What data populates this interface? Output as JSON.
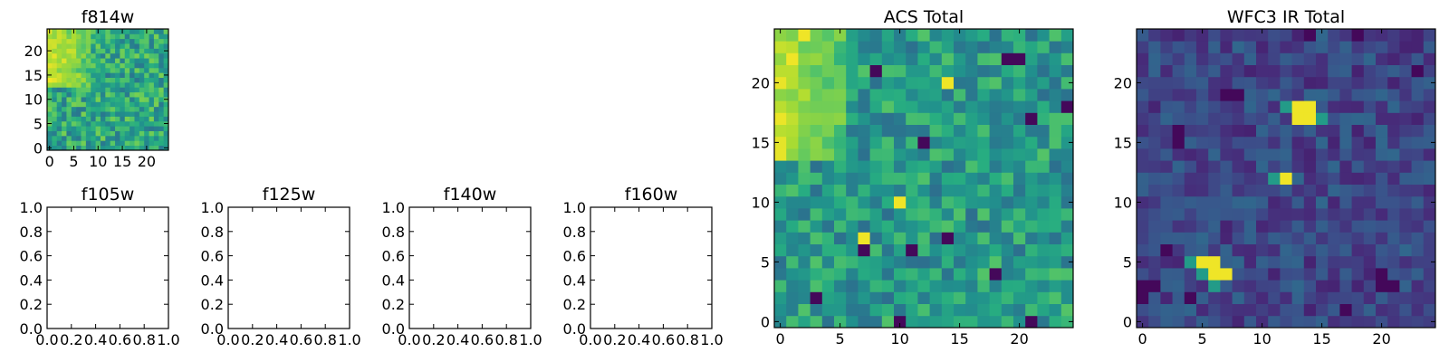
{
  "figure": {
    "background": "#ffffff",
    "colormap": "viridis"
  },
  "chart_data": [
    {
      "id": "f814w",
      "type": "heatmap",
      "title": "f814w",
      "grid": [
        25,
        25
      ],
      "xlim": [
        -0.5,
        24.5
      ],
      "ylim": [
        -0.5,
        24.5
      ],
      "origin": "lower",
      "xticks": [
        0,
        5,
        10,
        15,
        20
      ],
      "yticks": [
        0,
        5,
        10,
        15,
        20
      ],
      "xtick_labels": [
        "0",
        "5",
        "10",
        "15",
        "20"
      ],
      "ytick_labels": [
        "0",
        "5",
        "10",
        "15",
        "20"
      ],
      "value_range": [
        0,
        1
      ],
      "background_level": 0.6,
      "noise": 0.2,
      "bright_region": {
        "x": [
          0,
          8
        ],
        "y": [
          13,
          24
        ],
        "level": 0.92
      },
      "seed": 11
    },
    {
      "id": "f105w",
      "type": "empty",
      "title": "f105w",
      "xlim": [
        0,
        1
      ],
      "ylim": [
        0,
        1
      ],
      "xtick_labels": [
        "0.0",
        "0.2",
        "0.4",
        "0.6",
        "0.8",
        "1.0"
      ],
      "ytick_labels": [
        "0.0",
        "0.2",
        "0.4",
        "0.6",
        "0.8",
        "1.0"
      ]
    },
    {
      "id": "f125w",
      "type": "empty",
      "title": "f125w",
      "xlim": [
        0,
        1
      ],
      "ylim": [
        0,
        1
      ],
      "xtick_labels": [
        "0.0",
        "0.2",
        "0.4",
        "0.6",
        "0.8",
        "1.0"
      ],
      "ytick_labels": [
        "0.0",
        "0.2",
        "0.4",
        "0.6",
        "0.8",
        "1.0"
      ]
    },
    {
      "id": "f140w",
      "type": "empty",
      "title": "f140w",
      "xlim": [
        0,
        1
      ],
      "ylim": [
        0,
        1
      ],
      "xtick_labels": [
        "0.0",
        "0.2",
        "0.4",
        "0.6",
        "0.8",
        "1.0"
      ],
      "ytick_labels": [
        "0.0",
        "0.2",
        "0.4",
        "0.6",
        "0.8",
        "1.0"
      ]
    },
    {
      "id": "f160w",
      "type": "empty",
      "title": "f160w",
      "xlim": [
        0,
        1
      ],
      "ylim": [
        0,
        1
      ],
      "xtick_labels": [
        "0.0",
        "0.2",
        "0.4",
        "0.6",
        "0.8",
        "1.0"
      ],
      "ytick_labels": [
        "0.0",
        "0.2",
        "0.4",
        "0.6",
        "0.8",
        "1.0"
      ]
    },
    {
      "id": "acs_total",
      "type": "heatmap",
      "title": "ACS Total",
      "grid": [
        25,
        25
      ],
      "xlim": [
        -0.5,
        24.5
      ],
      "ylim": [
        -0.5,
        24.5
      ],
      "origin": "lower",
      "xticks": [
        0,
        5,
        10,
        15,
        20
      ],
      "yticks": [
        0,
        5,
        10,
        15,
        20
      ],
      "xtick_labels": [
        "0",
        "5",
        "10",
        "15",
        "20"
      ],
      "ytick_labels": [
        "0",
        "5",
        "10",
        "15",
        "20"
      ],
      "value_range": [
        0,
        1
      ],
      "background_level": 0.55,
      "noise": 0.18,
      "bright_region": {
        "x": [
          0,
          5
        ],
        "y": [
          14,
          24
        ],
        "level": 0.9
      },
      "dark_pixels": [
        [
          10,
          0
        ],
        [
          3,
          2
        ],
        [
          21,
          0
        ],
        [
          18,
          4
        ],
        [
          14,
          7
        ],
        [
          11,
          6
        ],
        [
          12,
          15
        ],
        [
          21,
          17
        ],
        [
          20,
          22
        ],
        [
          24,
          18
        ],
        [
          7,
          6
        ],
        [
          19,
          22
        ],
        [
          8,
          21
        ]
      ],
      "bright_pixels": [
        [
          7,
          7
        ],
        [
          10,
          10
        ],
        [
          14,
          20
        ],
        [
          1,
          22
        ],
        [
          2,
          24
        ]
      ],
      "seed": 7
    },
    {
      "id": "wfc3_ir_total",
      "type": "heatmap",
      "title": "WFC3 IR Total",
      "grid": [
        25,
        25
      ],
      "xlim": [
        -0.5,
        24.5
      ],
      "ylim": [
        -0.5,
        24.5
      ],
      "origin": "lower",
      "xticks": [
        0,
        5,
        10,
        15,
        20
      ],
      "yticks": [
        0,
        5,
        10,
        15,
        20
      ],
      "xtick_labels": [
        "0",
        "5",
        "10",
        "15",
        "20"
      ],
      "ytick_labels": [
        "0",
        "5",
        "10",
        "15",
        "20"
      ],
      "value_range": [
        0,
        1
      ],
      "background_level": 0.22,
      "noise": 0.12,
      "bright_pixels": [
        [
          13,
          18
        ],
        [
          14,
          18
        ],
        [
          13,
          17
        ],
        [
          14,
          17
        ],
        [
          12,
          12
        ],
        [
          5,
          5
        ],
        [
          6,
          5
        ],
        [
          6,
          4
        ],
        [
          7,
          4
        ]
      ],
      "medium_pixels": [
        [
          15,
          17
        ],
        [
          12,
          18
        ],
        [
          11,
          12
        ],
        [
          5,
          4
        ],
        [
          6,
          3
        ],
        [
          4,
          5
        ]
      ],
      "dark_pixels": [
        [
          7,
          19
        ],
        [
          8,
          19
        ],
        [
          3,
          16
        ],
        [
          3,
          15
        ],
        [
          0,
          3
        ],
        [
          1,
          3
        ],
        [
          0,
          2
        ],
        [
          2,
          6
        ],
        [
          20,
          3
        ],
        [
          21,
          3
        ],
        [
          20,
          4
        ],
        [
          18,
          24
        ],
        [
          14,
          24
        ],
        [
          23,
          21
        ],
        [
          4,
          2
        ],
        [
          17,
          1
        ]
      ],
      "seed": 3
    }
  ]
}
